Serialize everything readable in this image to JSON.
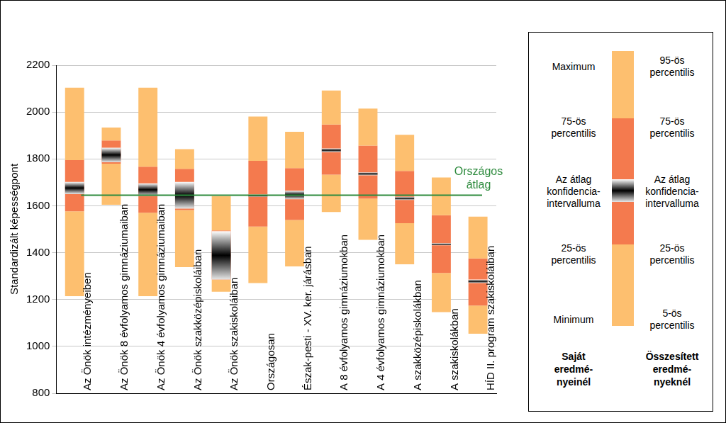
{
  "chart_data": {
    "type": "bar",
    "categories": [
      "Az Önök intézményeiben",
      "Az Önök 8 évfolyamos gimnáziumaiban",
      "Az Önök 4 évfolyamos gimnáziumaiban",
      "Az Önök szakközépiskoláiban",
      "Az Önök szakiskoláiban",
      "Országosan",
      "Észak-pesti - XV. ker. járásban",
      "A 8 évfolyamos gimnáziumokban",
      "A 4 évfolyamos gimnáziumokban",
      "A szakközépiskolákban",
      "A szakiskolákban",
      "HÍD II. program szakiskoláiban"
    ],
    "ylabel": "Standardizált képességpont",
    "ylim": [
      800,
      2200
    ],
    "yticks": [
      800,
      1000,
      1200,
      1400,
      1600,
      1800,
      2000,
      2200
    ],
    "grid": true,
    "series": [
      {
        "color": "#fdbf6f",
        "values": [
          [
            1214,
            1576
          ],
          [
            1604,
            1780
          ],
          [
            1214,
            1570
          ],
          [
            1338,
            1582
          ],
          [
            1233,
            1285
          ],
          [
            1270,
            1511
          ],
          [
            1341,
            1539
          ],
          [
            1573,
            1733
          ],
          [
            1455,
            1631
          ],
          [
            1350,
            1526
          ],
          [
            1146,
            1313
          ],
          [
            1054,
            1174
          ]
        ]
      },
      {
        "color": "#f47a4e",
        "values": [
          [
            1576,
            1795
          ],
          [
            1780,
            1879
          ],
          [
            1570,
            1767
          ],
          [
            1582,
            1758
          ],
          [
            1285,
            1495
          ],
          [
            1511,
            1792
          ],
          [
            1539,
            1761
          ],
          [
            1733,
            1947
          ],
          [
            1631,
            1857
          ],
          [
            1526,
            1749
          ],
          [
            1313,
            1560
          ],
          [
            1174,
            1375
          ]
        ]
      },
      {
        "color": "#fdbf6f",
        "values": [
          [
            1795,
            2104
          ],
          [
            1879,
            1934
          ],
          [
            1767,
            2104
          ],
          [
            1758,
            1842
          ],
          [
            1495,
            1641
          ],
          [
            1792,
            1981
          ],
          [
            1761,
            1916
          ],
          [
            1947,
            2092
          ],
          [
            1857,
            2015
          ],
          [
            1749,
            1903
          ],
          [
            1560,
            1721
          ],
          [
            1375,
            1554
          ]
        ]
      },
      {
        "color": "#000000",
        "values": [
          [
            1650,
            1702
          ],
          [
            1786,
            1848
          ],
          [
            1641,
            1696
          ],
          [
            1588,
            1702
          ],
          [
            1285,
            1492
          ],
          [
            1638,
            1648
          ],
          [
            1628,
            1665
          ],
          [
            1829,
            1845
          ],
          [
            1730,
            1743
          ],
          [
            1625,
            1638
          ],
          [
            1431,
            1440
          ],
          [
            1270,
            1285
          ]
        ]
      }
    ],
    "reference_line": {
      "value": 1645,
      "label": [
        "Országos",
        "átlag"
      ],
      "color": "#2e8b3e"
    },
    "legend_panel": {
      "left": {
        "labels": [
          [
            "Maximum"
          ],
          [
            "75-ös",
            "percentilis"
          ],
          [
            "Az átlag",
            "konfidencia-",
            "intervalluma"
          ],
          [
            "25-ös",
            "percentilis"
          ],
          [
            "Minimum"
          ]
        ],
        "heading": [
          "Saját",
          "eredmé-",
          "nyeinél"
        ]
      },
      "right": {
        "labels": [
          [
            "95-ös",
            "percentilis"
          ],
          [
            "75-ös",
            "percentilis"
          ],
          [
            "Az átlag",
            "konfidencia-",
            "intervalluma"
          ],
          [
            "25-ös",
            "percentilis"
          ],
          [
            "5-ös",
            "percentilis"
          ]
        ],
        "heading": [
          "Összesített",
          "eredmé-",
          "nyeknél"
        ]
      }
    }
  }
}
